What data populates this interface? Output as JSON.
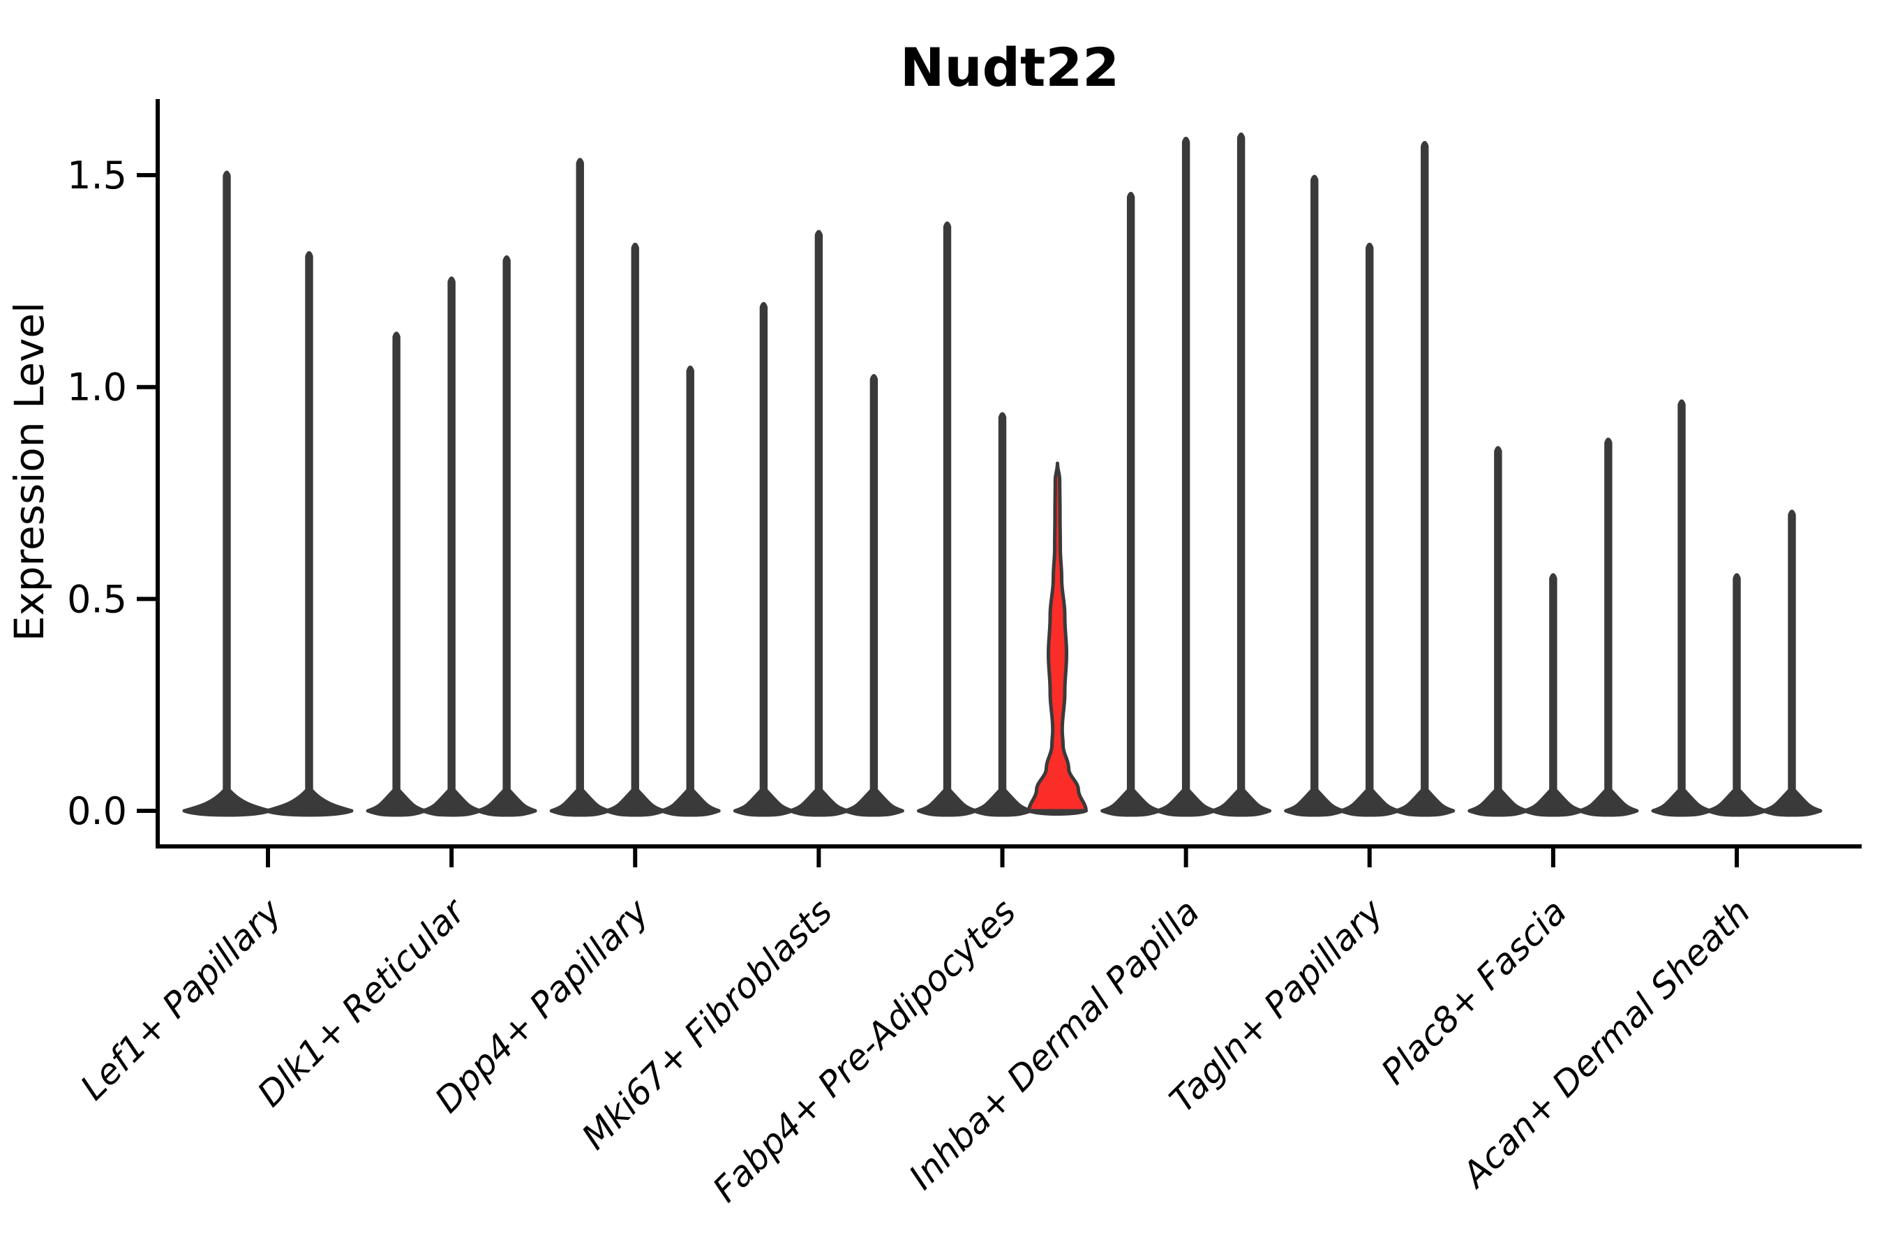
{
  "figure": {
    "title": "Nudt22",
    "ylabel": "Expression Level"
  },
  "chart_data": {
    "type": "violin",
    "title": "Nudt22",
    "xlabel": "",
    "ylabel": "Expression Level",
    "ylim": [
      0,
      1.68
    ],
    "yticks": [
      {
        "value": 0.0,
        "label": "0.0"
      },
      {
        "value": 0.5,
        "label": "0.5"
      },
      {
        "value": 1.0,
        "label": "1.0"
      },
      {
        "value": 1.5,
        "label": "1.5"
      }
    ],
    "grid": false,
    "legend": "none",
    "x_tick_label_rotation_deg": 45,
    "colors": {
      "axis": "#000000",
      "text": "#000000",
      "violin_outline": "#3a3a3a",
      "violin_fill": "#3a3a3a",
      "highlight_fill": "#fb2d28"
    },
    "groups": [
      {
        "category": "Lef1+ Papillary",
        "violin_max_expression": [
          1.51,
          1.32
        ],
        "highlight_index": null
      },
      {
        "category": "Dlk1+ Reticular",
        "violin_max_expression": [
          1.13,
          1.26,
          1.31
        ],
        "highlight_index": null
      },
      {
        "category": "Dpp4+ Papillary",
        "violin_max_expression": [
          1.54,
          1.34,
          1.05
        ],
        "highlight_index": null
      },
      {
        "category": "Mki67+ Fibroblasts",
        "violin_max_expression": [
          1.2,
          1.37,
          1.03
        ],
        "highlight_index": null
      },
      {
        "category": "Fabp4+ Pre-Adipocytes",
        "violin_max_expression": [
          1.39,
          0.94,
          0.82
        ],
        "highlight_index": 2
      },
      {
        "category": "Inhba+ Dermal Papilla",
        "violin_max_expression": [
          1.46,
          1.59,
          1.6
        ],
        "highlight_index": null
      },
      {
        "category": "Tagln+ Papillary",
        "violin_max_expression": [
          1.5,
          1.34,
          1.58
        ],
        "highlight_index": null
      },
      {
        "category": "Plac8+ Fascia",
        "violin_max_expression": [
          0.86,
          0.56,
          0.88
        ],
        "highlight_index": null
      },
      {
        "category": "Acan+ Dermal Sheath",
        "violin_max_expression": [
          0.97,
          0.56,
          0.71
        ],
        "highlight_index": null
      }
    ],
    "highlight_violin_profile": [
      [
        0.0,
        1.0
      ],
      [
        0.05,
        0.73
      ],
      [
        0.1,
        0.39
      ],
      [
        0.155,
        0.195
      ],
      [
        0.19,
        0.166
      ],
      [
        0.28,
        0.256
      ],
      [
        0.37,
        0.317
      ],
      [
        0.46,
        0.256
      ],
      [
        0.55,
        0.146
      ],
      [
        0.62,
        0.098
      ],
      [
        0.7,
        0.088
      ],
      [
        0.78,
        0.078
      ],
      [
        0.82,
        0.0
      ]
    ]
  }
}
